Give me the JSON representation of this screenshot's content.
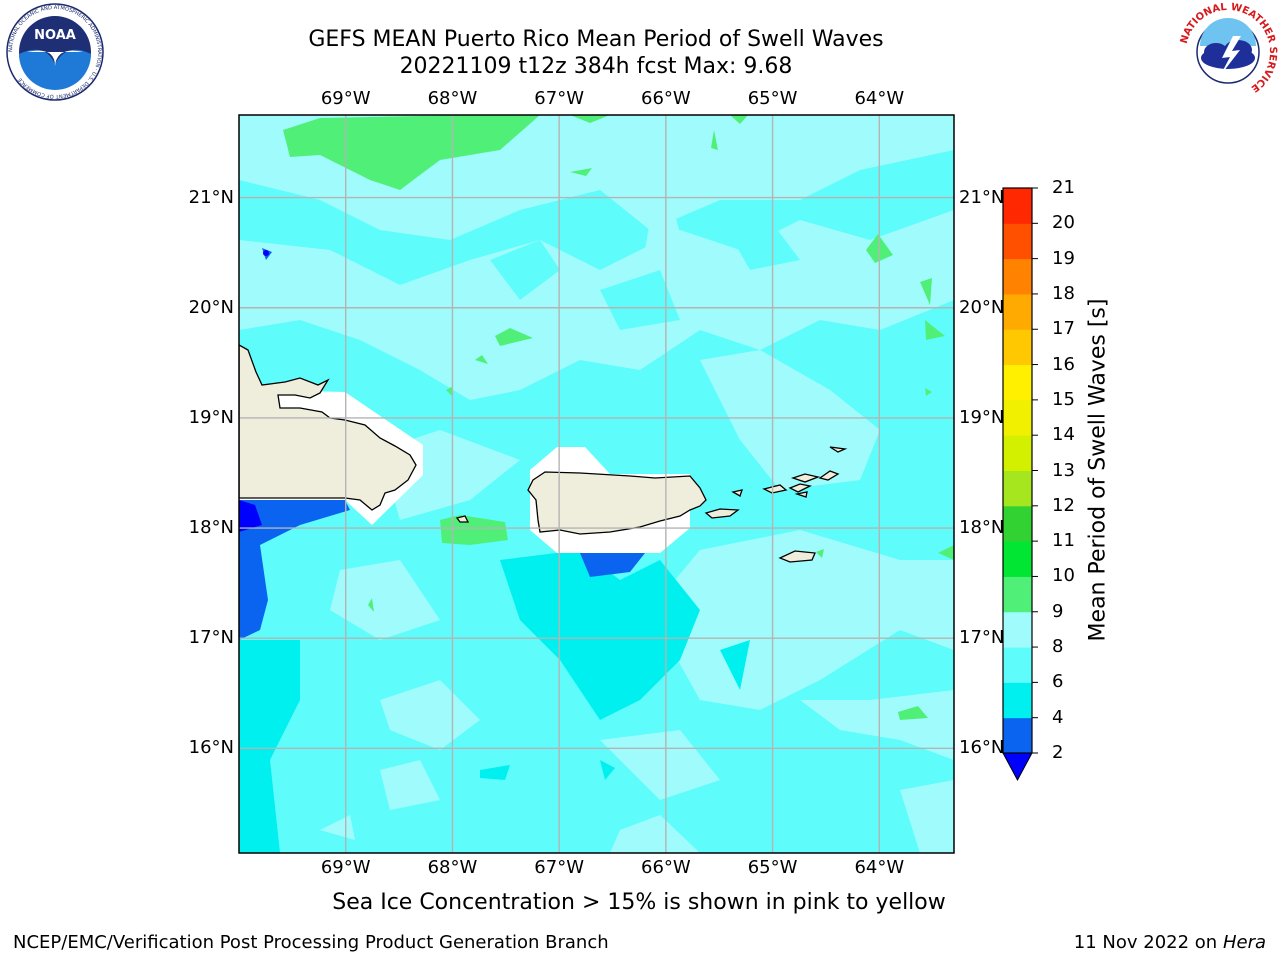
{
  "header": {
    "title_line1": "GEFS MEAN Puerto Rico Mean Period of Swell Waves",
    "title_line2": "20221109 t12z 384h fcst   Max: 9.68"
  },
  "map": {
    "lon_labels": [
      "69°W",
      "68°W",
      "67°W",
      "66°W",
      "65°W",
      "64°W"
    ],
    "lat_labels": [
      "21°N",
      "20°N",
      "19°N",
      "18°N",
      "17°N",
      "16°N"
    ],
    "lon_values": [
      -69,
      -68,
      -67,
      -66,
      -65,
      -64
    ],
    "lat_values": [
      21,
      20,
      19,
      18,
      17,
      16
    ],
    "extent": {
      "lon_min": -70,
      "lon_max": -63.3,
      "lat_min": 15.05,
      "lat_max": 21.75
    },
    "colors": {
      "ocean_base": "#5ffcfc",
      "land": "#efeedc",
      "masked": "#ffffff",
      "grid": "#b4b4b4"
    }
  },
  "colorbar": {
    "title": "Mean Period of Swell Waves [s]",
    "ticks": [
      "2",
      "4",
      "6",
      "8",
      "9",
      "10",
      "11",
      "12",
      "13",
      "14",
      "15",
      "16",
      "17",
      "18",
      "19",
      "20",
      "21"
    ],
    "levels": [
      2,
      4,
      6,
      8,
      9,
      10,
      11,
      12,
      13,
      14,
      15,
      16,
      17,
      18,
      19,
      20,
      21
    ],
    "colors": [
      "#0a64f0",
      "#00f0f0",
      "#5ffcfc",
      "#a0fcfc",
      "#50f078",
      "#00e632",
      "#32d232",
      "#a5e61e",
      "#d2f000",
      "#f0f000",
      "#fff000",
      "#ffc800",
      "#ffaa00",
      "#ff8200",
      "#ff5000",
      "#ff2800",
      "#ff0000"
    ],
    "under_color": "#0000ff"
  },
  "footer": {
    "subtitle": "Sea Ice Concentration > 15% is shown in pink to yellow",
    "left": "NCEP/EMC/Verification Post Processing Product Generation Branch",
    "right_date": "11 Nov 2022 on",
    "right_host": "Hera"
  },
  "logos": {
    "noaa_text": "NOAA",
    "noaa_ring": "NATIONAL OCEANIC AND ATMOSPHERIC ADMINISTRATION · U.S. DEPARTMENT OF COMMERCE",
    "nws_ring": "NATIONAL WEATHER SERVICE"
  }
}
